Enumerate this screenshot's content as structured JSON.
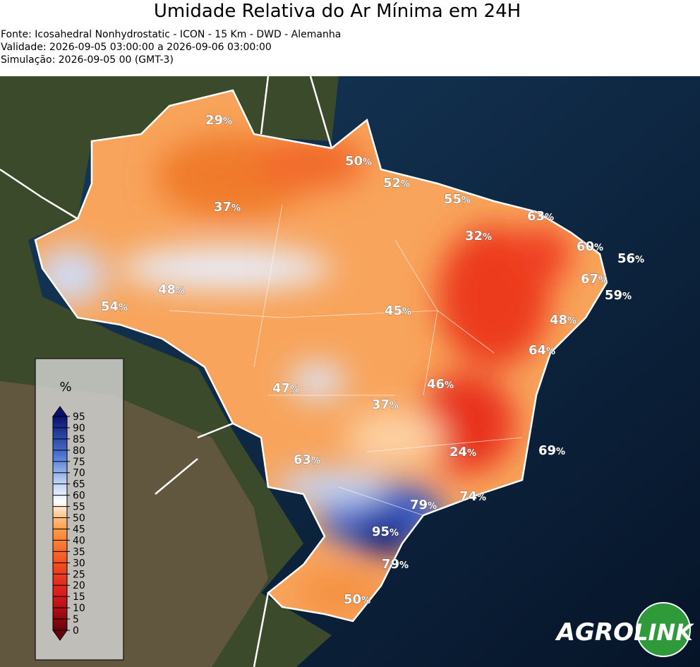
{
  "header": {
    "title": "Umidade Relativa do Ar Mínima em 24H",
    "info": [
      "Fonte: Icosahedral Nonhydrostatic - ICON - 15 Km - DWD - Alemanha",
      "Validade: 2026-09-05 03:00:00 a 2026-09-06 03:00:00",
      "Simulação: 2026-09-05 00 (GMT-3)"
    ]
  },
  "colorbar": {
    "unit": "%",
    "ticks": [
      0,
      5,
      10,
      15,
      20,
      25,
      30,
      35,
      40,
      45,
      50,
      55,
      60,
      65,
      70,
      75,
      80,
      85,
      90,
      95
    ]
  },
  "labels": [
    {
      "value": 29,
      "unit": "%"
    },
    {
      "value": 50,
      "unit": "%"
    },
    {
      "value": 52,
      "unit": "%"
    },
    {
      "value": 55,
      "unit": "%"
    },
    {
      "value": 37,
      "unit": "%"
    },
    {
      "value": 63,
      "unit": "%"
    },
    {
      "value": 32,
      "unit": "%"
    },
    {
      "value": 60,
      "unit": "%"
    },
    {
      "value": 56,
      "unit": "%"
    },
    {
      "value": 67,
      "unit": "%"
    },
    {
      "value": 59,
      "unit": "%"
    },
    {
      "value": 48,
      "unit": "%"
    },
    {
      "value": 54,
      "unit": "%"
    },
    {
      "value": 45,
      "unit": "%"
    },
    {
      "value": 48,
      "unit": "%"
    },
    {
      "value": 64,
      "unit": "%"
    },
    {
      "value": 47,
      "unit": "%"
    },
    {
      "value": 46,
      "unit": "%"
    },
    {
      "value": 37,
      "unit": "%"
    },
    {
      "value": 24,
      "unit": "%"
    },
    {
      "value": 69,
      "unit": "%"
    },
    {
      "value": 63,
      "unit": "%"
    },
    {
      "value": 74,
      "unit": "%"
    },
    {
      "value": 79,
      "unit": "%"
    },
    {
      "value": 95,
      "unit": "%"
    },
    {
      "value": 79,
      "unit": "%"
    },
    {
      "value": 50,
      "unit": "%"
    }
  ],
  "logo": {
    "agro": "AGRO",
    "link": "LINK"
  }
}
